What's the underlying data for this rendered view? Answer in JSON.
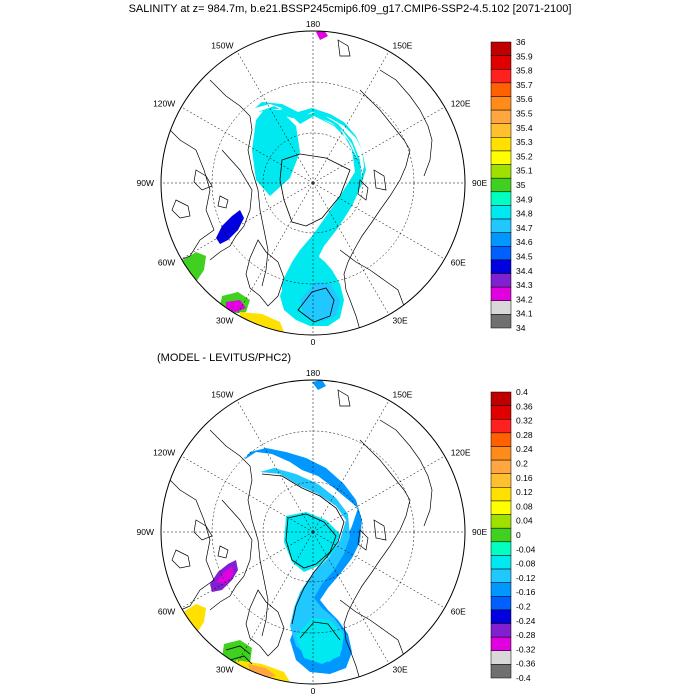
{
  "title": "SALINITY at z= 984.7m, b.e21.BSSP245cmip6.f09_g17.CMIP6-SSP2-4.5.102 [2071-2100]",
  "panel2_title": "(MODEL - LEVITUS/PHC2)",
  "lon_labels": [
    "180",
    "150E",
    "120E",
    "90E",
    "60E",
    "30E",
    "0",
    "30W",
    "60W",
    "90W",
    "120W",
    "150W"
  ],
  "panels": [
    {
      "id": "salinity",
      "colorbar": {
        "labels": [
          "36",
          "35.9",
          "35.8",
          "35.7",
          "35.6",
          "35.5",
          "35.4",
          "35.3",
          "35.2",
          "35.1",
          "35",
          "34.9",
          "34.8",
          "34.7",
          "34.6",
          "34.5",
          "34.4",
          "34.3",
          "34.2",
          "34.1",
          "34"
        ],
        "colors": [
          "#c00000",
          "#e00000",
          "#ff2020",
          "#ff6000",
          "#ff8c1a",
          "#ffa640",
          "#ffc030",
          "#ffe000",
          "#ffff00",
          "#a0e000",
          "#40d020",
          "#00ffc0",
          "#00e8f0",
          "#20c8ff",
          "#0098ff",
          "#0060ff",
          "#0000e0",
          "#8020d0",
          "#e000e0",
          "#d8d8d8",
          "#707070"
        ]
      }
    },
    {
      "id": "difference",
      "colorbar": {
        "labels": [
          "0.4",
          "0.36",
          "0.32",
          "0.28",
          "0.24",
          "0.2",
          "0.16",
          "0.12",
          "0.08",
          "0.04",
          "0",
          "-0.04",
          "-0.08",
          "-0.12",
          "-0.16",
          "-0.2",
          "-0.24",
          "-0.28",
          "-0.32",
          "-0.36",
          "-0.4"
        ],
        "colors": [
          "#c00000",
          "#e00000",
          "#ff2020",
          "#ff6000",
          "#ff8c1a",
          "#ffa640",
          "#ffc030",
          "#ffe000",
          "#ffff00",
          "#a0e000",
          "#40d020",
          "#00ffc0",
          "#00e8f0",
          "#20c8ff",
          "#0098ff",
          "#0060ff",
          "#0000e0",
          "#8020d0",
          "#e000e0",
          "#d8d8d8",
          "#707070"
        ]
      }
    }
  ],
  "field_colors": {
    "cyan": "#00e8f0",
    "cyan_light": "#20c8ff",
    "sky": "#40b8ff",
    "aqua": "#00ffc0",
    "blue": "#0000e0",
    "azure": "#0098ff",
    "green": "#40d020",
    "yellow": "#ffe000",
    "orange": "#ffa640",
    "magenta": "#e000e0",
    "purple": "#8020d0"
  }
}
